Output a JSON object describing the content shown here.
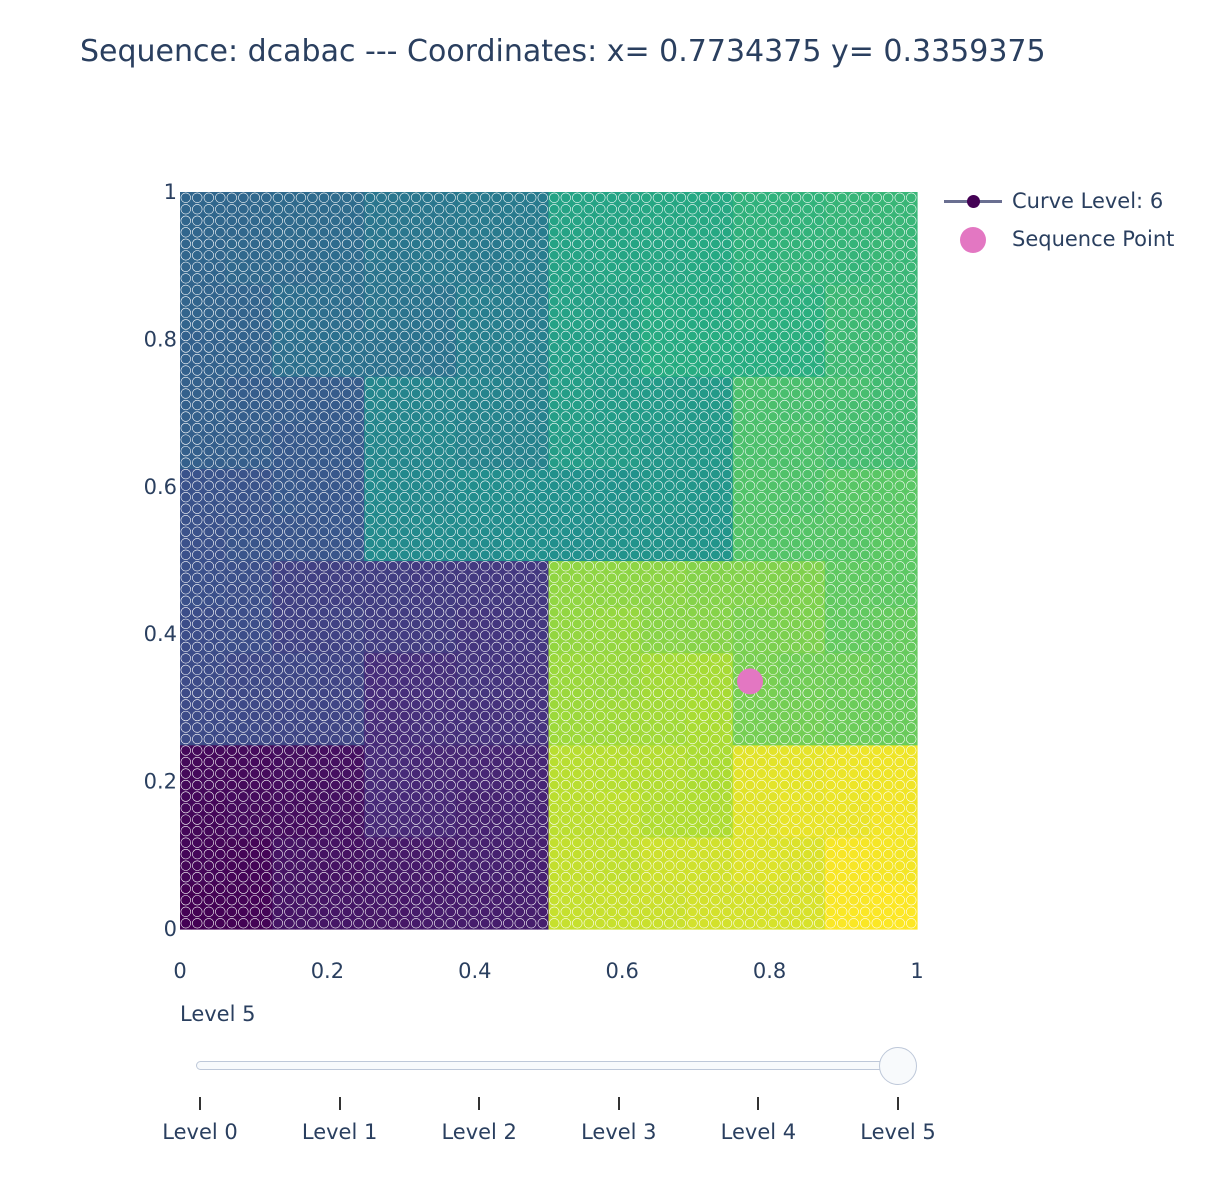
{
  "title": "Sequence: dcabac --- Coordinates: x= 0.7734375 y= 0.3359375",
  "chart_data": {
    "type": "scatter",
    "title": "Sequence: dcabac --- Coordinates: x= 0.7734375 y= 0.3359375",
    "xlim": [
      0,
      1
    ],
    "ylim": [
      0,
      1
    ],
    "x_ticks": [
      "0",
      "0.2",
      "0.4",
      "0.6",
      "0.8",
      "1"
    ],
    "y_ticks": [
      "0",
      "0.2",
      "0.4",
      "0.6",
      "0.8",
      "1"
    ],
    "grid": false,
    "legend_placement": "top-right",
    "colorscale": "viridis",
    "series": [
      {
        "name": "Curve Level: 6",
        "kind": "lines+markers",
        "grid_resolution": 64,
        "marker_colorscale": "viridis",
        "line_color": "#6a6f91"
      },
      {
        "name": "Sequence Point",
        "kind": "markers",
        "x": [
          0.7734375
        ],
        "y": [
          0.3359375
        ],
        "color": "#e377c2"
      }
    ]
  },
  "legend": {
    "items": [
      {
        "label": "Curve Level: 6",
        "marker": "line-with-dot"
      },
      {
        "label": "Sequence Point",
        "marker": "dot"
      }
    ]
  },
  "slider": {
    "current_label": "Level 5",
    "active_index": 5,
    "steps": [
      "Level 0",
      "Level 1",
      "Level 2",
      "Level 3",
      "Level 4",
      "Level 5"
    ]
  }
}
